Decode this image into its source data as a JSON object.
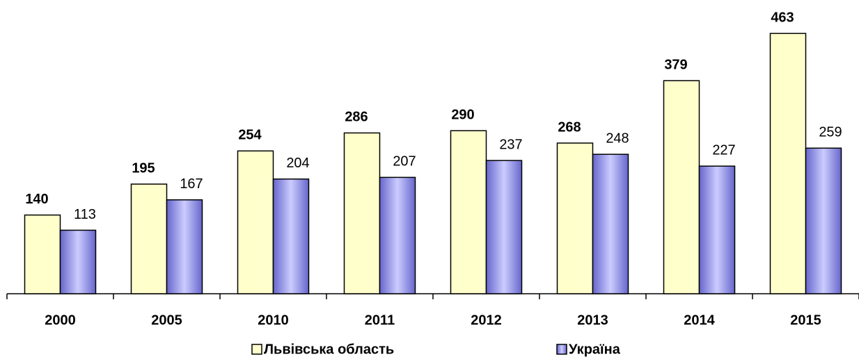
{
  "chart_data": {
    "type": "bar",
    "categories": [
      "2000",
      "2005",
      "2010",
      "2011",
      "2012",
      "2013",
      "2014",
      "2015"
    ],
    "series": [
      {
        "name": "Львівська область",
        "color": "#ffffcc",
        "values": [
          140,
          195,
          254,
          286,
          290,
          268,
          379,
          463
        ]
      },
      {
        "name": "Україна",
        "color": "#9999ff",
        "values": [
          113,
          167,
          204,
          207,
          237,
          248,
          227,
          259
        ]
      }
    ],
    "ylim": [
      0,
      520
    ]
  }
}
